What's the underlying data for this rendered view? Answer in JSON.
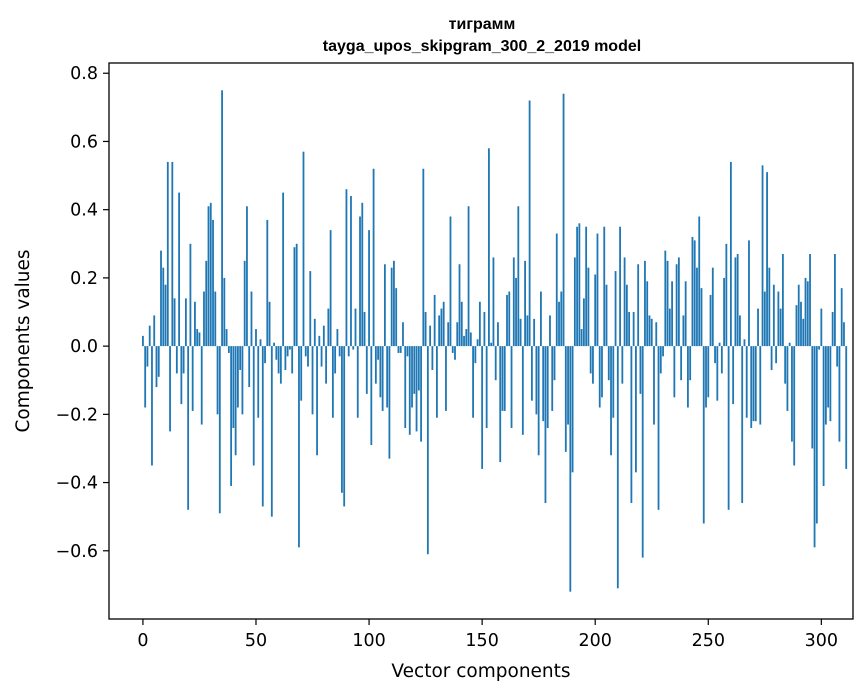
{
  "chart_data": {
    "type": "bar",
    "title_line1": "тиграмм",
    "title_line2": "tayga_upos_skipgram_300_2_2019 model",
    "xlabel": "Vector components",
    "ylabel": "Components values",
    "xlim": [
      -15,
      314
    ],
    "ylim": [
      -0.8,
      0.83
    ],
    "x_ticks": [
      0,
      50,
      100,
      150,
      200,
      250,
      300
    ],
    "y_ticks": [
      -0.6,
      -0.4,
      -0.2,
      0.0,
      0.2,
      0.4,
      0.6,
      0.8
    ],
    "x_tick_labels": [
      "0",
      "50",
      "100",
      "150",
      "200",
      "250",
      "300"
    ],
    "y_tick_labels": [
      "−0.6",
      "−0.4",
      "−0.2",
      "0.0",
      "0.2",
      "0.4",
      "0.6",
      "0.8"
    ],
    "bar_color": "#1f77b4",
    "grid": false,
    "legend": "none",
    "values": [
      0.03,
      -0.18,
      -0.06,
      0.06,
      -0.35,
      0.09,
      -0.12,
      -0.09,
      0.28,
      0.23,
      0.18,
      0.54,
      -0.25,
      0.54,
      0.14,
      -0.08,
      0.45,
      -0.17,
      -0.08,
      0.14,
      -0.48,
      0.3,
      -0.19,
      0.13,
      0.05,
      0.04,
      -0.23,
      0.16,
      0.25,
      0.41,
      0.42,
      0.37,
      0.16,
      -0.2,
      -0.49,
      0.75,
      0.2,
      0.05,
      -0.02,
      -0.41,
      -0.24,
      -0.32,
      -0.18,
      -0.07,
      -0.2,
      0.25,
      0.41,
      -0.12,
      0.16,
      -0.35,
      0.05,
      -0.21,
      0.02,
      -0.47,
      -0.05,
      0.37,
      0.13,
      -0.5,
      0.01,
      -0.04,
      -0.08,
      -0.11,
      0.45,
      -0.07,
      -0.03,
      -0.01,
      -0.08,
      0.29,
      0.3,
      -0.59,
      -0.16,
      0.57,
      -0.03,
      -0.06,
      0.22,
      -0.2,
      0.08,
      -0.32,
      0.03,
      -0.06,
      0.06,
      -0.11,
      0.11,
      0.34,
      -0.21,
      -0.08,
      0.05,
      -0.03,
      -0.43,
      -0.47,
      0.46,
      -0.03,
      0.44,
      -0.01,
      0.11,
      -0.21,
      0.38,
      0.42,
      0.1,
      -0.14,
      0.34,
      -0.29,
      0.52,
      -0.11,
      -0.04,
      -0.15,
      -0.19,
      0.24,
      -0.18,
      -0.33,
      0.23,
      0.25,
      0.17,
      -0.02,
      -0.02,
      0.07,
      -0.24,
      -0.03,
      -0.26,
      -0.18,
      -0.14,
      -0.25,
      -0.13,
      -0.28,
      0.52,
      0.1,
      -0.61,
      0.06,
      -0.07,
      0.15,
      -0.21,
      0.09,
      0.11,
      0.13,
      -0.19,
      0.07,
      0.38,
      -0.02,
      -0.04,
      0.07,
      0.24,
      0.13,
      0.03,
      0.05,
      0.41,
      0.04,
      -0.21,
      -0.05,
      0.02,
      0.13,
      -0.36,
      0.1,
      -0.24,
      0.58,
      0.01,
      0.26,
      -0.1,
      0.07,
      -0.34,
      -0.19,
      -0.19,
      0.15,
      0.16,
      -0.24,
      0.26,
      0.2,
      0.41,
      0.08,
      -0.26,
      0.25,
      0.09,
      0.72,
      -0.16,
      0.08,
      -0.2,
      -0.32,
      0.16,
      -0.22,
      -0.46,
      -0.24,
      0.09,
      -0.19,
      -0.1,
      0.33,
      0.13,
      0.16,
      0.74,
      -0.31,
      -0.23,
      -0.72,
      -0.37,
      0.26,
      0.35,
      0.36,
      0.05,
      0.14,
      0.35,
      0.23,
      -0.08,
      -0.11,
      0.21,
      0.33,
      -0.18,
      -0.15,
      0.35,
      0.18,
      -0.1,
      -0.32,
      -0.21,
      0.22,
      -0.71,
      0.35,
      -0.11,
      0.26,
      0.18,
      0.1,
      -0.46,
      0.1,
      -0.37,
      0.24,
      -0.14,
      -0.62,
      0.25,
      0.19,
      0.09,
      0.08,
      -0.23,
      0.07,
      -0.48,
      -0.08,
      -0.03,
      0.28,
      0.25,
      0.11,
      0.19,
      -0.15,
      0.24,
      0.26,
      -0.1,
      0.09,
      0.19,
      -0.18,
      -0.1,
      0.32,
      0.31,
      0.23,
      0.38,
      0.17,
      -0.52,
      -0.18,
      -0.15,
      0.15,
      0.23,
      -0.05,
      -0.16,
      0.01,
      -0.08,
      0.2,
      0.3,
      -0.48,
      0.54,
      -0.17,
      0.26,
      0.27,
      0.09,
      -0.46,
      0.02,
      -0.21,
      0.31,
      -0.24,
      -0.22,
      -0.22,
      0.11,
      -0.23,
      0.53,
      0.16,
      0.51,
      0.23,
      -0.07,
      0.18,
      -0.05,
      0.16,
      0.11,
      0.27,
      -0.11,
      -0.19,
      0.01,
      -0.28,
      -0.35,
      0.12,
      0.18,
      0.13,
      0.08,
      0.2,
      0.19,
      0.27,
      -0.3,
      -0.59,
      -0.52,
      -0.01,
      0.11,
      -0.41,
      -0.23,
      -0.18,
      -0.22,
      0.1,
      0.27,
      -0.06,
      -0.28,
      0.17,
      0.07,
      -0.36
    ]
  }
}
